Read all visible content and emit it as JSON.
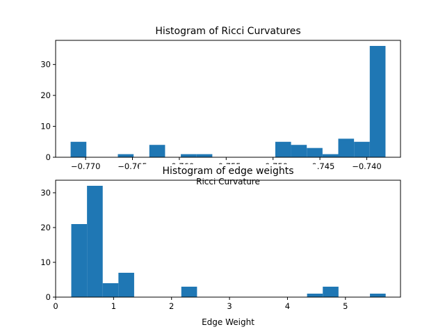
{
  "chart_data": [
    {
      "type": "bar",
      "title": "Histogram of Ricci Curvatures",
      "xlabel": "Ricci Curvature",
      "ylabel": "",
      "xlim": [
        -0.7732,
        -0.7364
      ],
      "ylim": [
        0,
        37.8
      ],
      "x_ticks": [
        -0.77,
        -0.765,
        -0.76,
        -0.755,
        -0.75,
        -0.745,
        -0.74
      ],
      "x_tick_labels": [
        "−0.770",
        "−0.765",
        "−0.760",
        "−0.755",
        "−0.750",
        "−0.745",
        "−0.740"
      ],
      "y_ticks": [
        0,
        10,
        20,
        30
      ],
      "y_tick_labels": [
        "0",
        "10",
        "20",
        "30"
      ],
      "bin_start": -0.7716,
      "bin_width": 0.00168,
      "values": [
        5,
        0,
        0,
        1,
        0,
        4,
        0,
        1,
        1,
        0,
        0,
        0,
        0,
        5,
        4,
        3,
        1,
        6,
        5,
        36
      ],
      "color": "#1f77b4",
      "grid": false
    },
    {
      "type": "bar",
      "title": "Histogram of edge weights",
      "xlabel": "Edge Weight",
      "ylabel": "",
      "xlim": [
        0,
        5.95
      ],
      "ylim": [
        0,
        33.6
      ],
      "x_ticks": [
        0,
        1,
        2,
        3,
        4,
        5
      ],
      "x_tick_labels": [
        "0",
        "1",
        "2",
        "3",
        "4",
        "5"
      ],
      "y_ticks": [
        0,
        10,
        20,
        30
      ],
      "y_tick_labels": [
        "0",
        "10",
        "20",
        "30"
      ],
      "bin_start": 0.27,
      "bin_width": 0.2712,
      "values": [
        21,
        32,
        4,
        7,
        0,
        0,
        0,
        3,
        0,
        0,
        0,
        0,
        0,
        0,
        0,
        1,
        3,
        0,
        0,
        1
      ],
      "color": "#1f77b4",
      "grid": false
    }
  ]
}
